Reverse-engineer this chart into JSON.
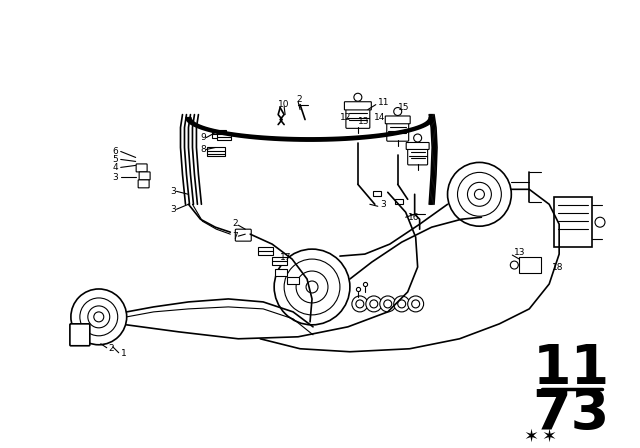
{
  "background_color": "#ffffff",
  "line_color": "#000000",
  "fig_width": 6.4,
  "fig_height": 4.48,
  "dpi": 100,
  "diagram_top": "11",
  "diagram_bottom": "73"
}
